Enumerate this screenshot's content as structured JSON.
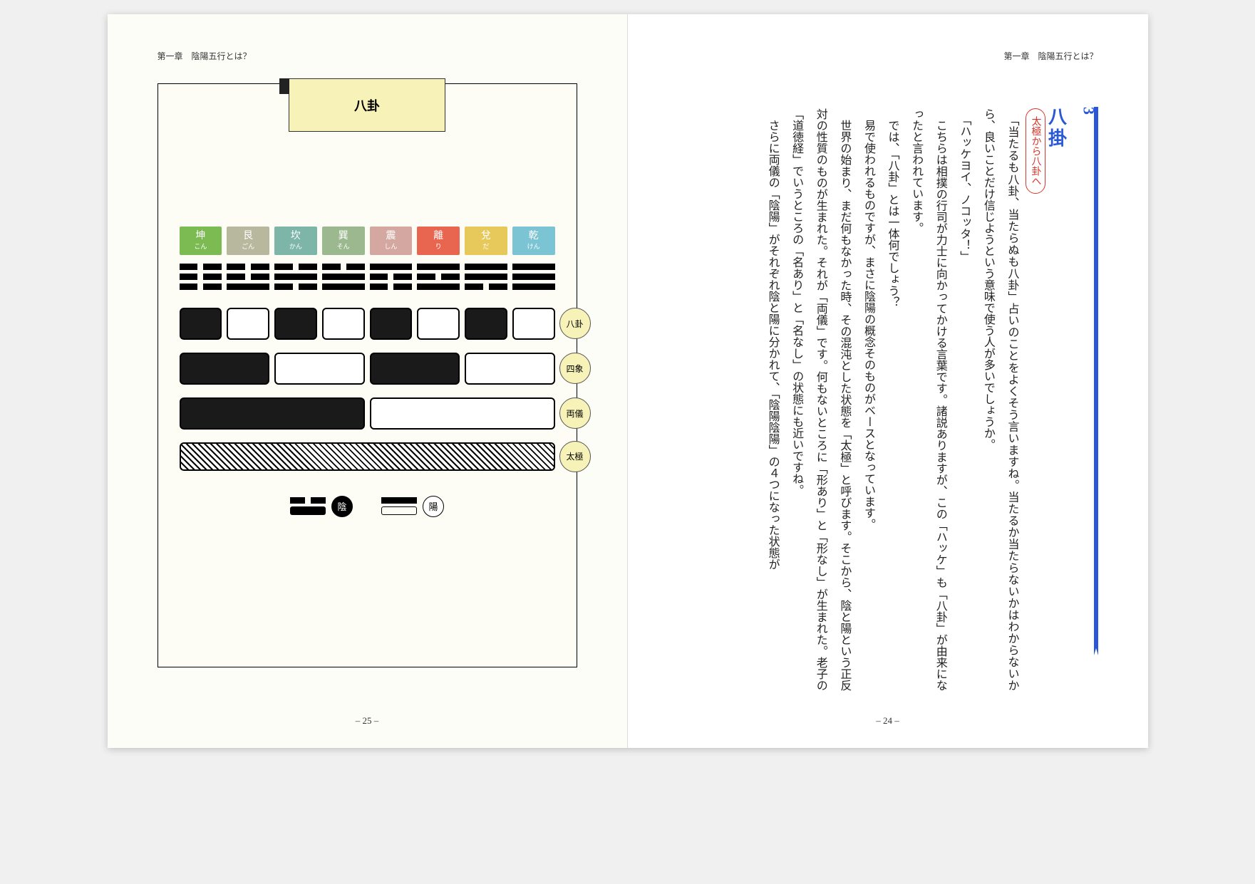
{
  "chapter_header": "第一章　陰陽五行とは？",
  "left": {
    "page_num": "– 25 –",
    "tab_title": "八卦",
    "trigrams": [
      {
        "name": "坤",
        "kana": "こん",
        "color": "#7cbb52",
        "lines": [
          0,
          0,
          0
        ]
      },
      {
        "name": "艮",
        "kana": "ごん",
        "color": "#b8b89e",
        "lines": [
          1,
          0,
          0
        ]
      },
      {
        "name": "坎",
        "kana": "かん",
        "color": "#7db5a8",
        "lines": [
          0,
          1,
          0
        ]
      },
      {
        "name": "巽",
        "kana": "そん",
        "color": "#9bb88f",
        "lines": [
          1,
          1,
          0
        ]
      },
      {
        "name": "震",
        "kana": "しん",
        "color": "#d4a8a0",
        "lines": [
          0,
          0,
          1
        ]
      },
      {
        "name": "離",
        "kana": "り",
        "color": "#e8664f",
        "lines": [
          1,
          0,
          1
        ]
      },
      {
        "name": "兌",
        "kana": "だ",
        "color": "#e6c95a",
        "lines": [
          0,
          1,
          1
        ]
      },
      {
        "name": "乾",
        "kana": "けん",
        "color": "#7bc4d4",
        "lines": [
          1,
          1,
          1
        ]
      }
    ],
    "levels": {
      "bagua": {
        "label": "八卦",
        "pattern": [
          1,
          0,
          1,
          0,
          1,
          0,
          1,
          0
        ]
      },
      "sixiang": {
        "label": "四象",
        "pattern": [
          1,
          0,
          1,
          0
        ]
      },
      "liangyi": {
        "label": "両儀",
        "pattern": [
          1,
          0
        ]
      },
      "taiji": {
        "label": "太極"
      }
    },
    "legend": {
      "yin": "陰",
      "yang": "陽"
    }
  },
  "right": {
    "page_num": "– 24 –",
    "section_num": "3",
    "section_title": "八掛",
    "subhead": "太極から八卦へ",
    "paragraphs": [
      "「当たるも八卦、当たらぬも八卦」占いのことをよくそう言いますね。当たるか当たらないかはわからないから、良いことだけ信じようという意味で使う人が多いでしょうか。",
      "「ハッケヨイ、ノコッタ！」",
      "こちらは相撲の行司が力士に向かってかける言葉です。諸説ありますが、この「ハッケ」も「八卦」が由来になったと言われています。",
      "では、「八卦」とは一体何でしょう？",
      "易で使われるものですが、まさに陰陽の概念そのものがベースとなっています。",
      "世界の始まり、まだ何もなかった時、その混沌とした状態を「太極」と呼びます。そこから、陰と陽という正反対の性質のものが生まれた。それが「両儀」です。何もないところに「形あり」と「形なし」が生まれた。老子の「道徳経」でいうところの「名あり」と「名なし」の状態にも近いですね。",
      "さらに両儀の「陰陽」がそれぞれ陰と陽に分かれて、「陰陽陰陽」の４つになった状態が"
    ]
  }
}
